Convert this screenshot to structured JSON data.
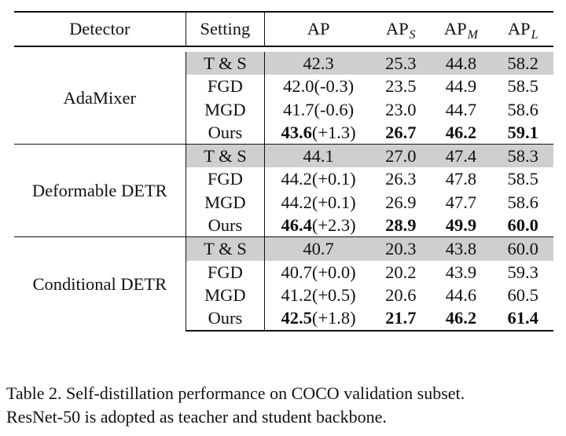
{
  "headers": {
    "detector": "Detector",
    "setting": "Setting",
    "ap": "AP",
    "ap_s": "AP",
    "ap_s_sub": "S",
    "ap_m": "AP",
    "ap_m_sub": "M",
    "ap_l": "AP",
    "ap_l_sub": "L"
  },
  "groups": [
    {
      "detector": "AdaMixer",
      "rows": [
        {
          "setting": "T & S",
          "ap": "42.3",
          "ap_delta": "",
          "aps": "25.3",
          "apm": "44.8",
          "apl": "58.2"
        },
        {
          "setting": "FGD",
          "ap": "42.0",
          "ap_delta": "(-0.3)",
          "aps": "23.5",
          "apm": "44.9",
          "apl": "58.5"
        },
        {
          "setting": "MGD",
          "ap": "41.7",
          "ap_delta": "(-0.6)",
          "aps": "23.0",
          "apm": "44.7",
          "apl": "58.6"
        },
        {
          "setting": "Ours",
          "ap": "43.6",
          "ap_delta": "(+1.3)",
          "aps": "26.7",
          "apm": "46.2",
          "apl": "59.1"
        }
      ]
    },
    {
      "detector": "Deformable DETR",
      "rows": [
        {
          "setting": "T & S",
          "ap": "44.1",
          "ap_delta": "",
          "aps": "27.0",
          "apm": "47.4",
          "apl": "58.3"
        },
        {
          "setting": "FGD",
          "ap": "44.2",
          "ap_delta": "(+0.1)",
          "aps": "26.3",
          "apm": "47.8",
          "apl": "58.5"
        },
        {
          "setting": "MGD",
          "ap": "44.2",
          "ap_delta": "(+0.1)",
          "aps": "26.9",
          "apm": "47.7",
          "apl": "58.6"
        },
        {
          "setting": "Ours",
          "ap": "46.4",
          "ap_delta": "(+2.3)",
          "aps": "28.9",
          "apm": "49.9",
          "apl": "60.0"
        }
      ]
    },
    {
      "detector": "Conditional DETR",
      "rows": [
        {
          "setting": "T & S",
          "ap": "40.7",
          "ap_delta": "",
          "aps": "20.3",
          "apm": "43.8",
          "apl": "60.0"
        },
        {
          "setting": "FGD",
          "ap": "40.7",
          "ap_delta": "(+0.0)",
          "aps": "20.2",
          "apm": "43.9",
          "apl": "59.3"
        },
        {
          "setting": "MGD",
          "ap": "41.2",
          "ap_delta": "(+0.5)",
          "aps": "20.6",
          "apm": "44.6",
          "apl": "60.5"
        },
        {
          "setting": "Ours",
          "ap": "42.5",
          "ap_delta": "(+1.8)",
          "aps": "21.7",
          "apm": "46.2",
          "apl": "61.4"
        }
      ]
    }
  ],
  "caption": {
    "line1": "Table 2. Self-distillation performance on COCO validation subset.",
    "line2": "ResNet-50 is adopted as teacher and student backbone."
  }
}
